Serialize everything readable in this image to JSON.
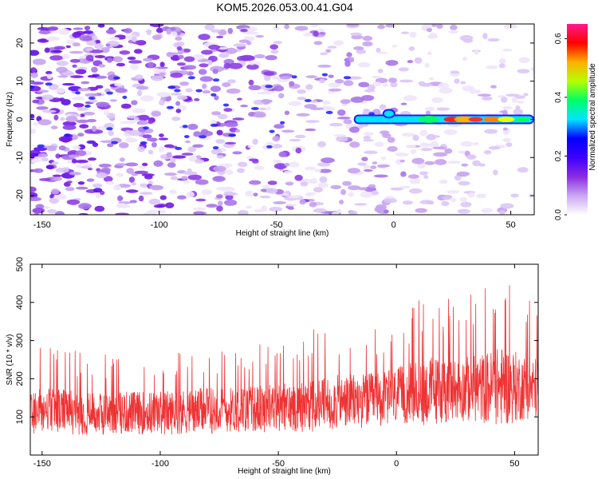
{
  "page_title": "KOM5.2026.053.00.41.G04",
  "chart_data": [
    {
      "type": "heatmap",
      "title": "KOM5.2026.053.00.41.G04",
      "xlabel": "Height of straight line (km)",
      "ylabel": "Frequency (Hz)",
      "xlim": [
        -155,
        60
      ],
      "ylim": [
        -25,
        25
      ],
      "xticks": [
        -150,
        -100,
        -50,
        0,
        50
      ],
      "yticks": [
        -20,
        -10,
        0,
        10,
        20
      ],
      "signal": {
        "description": "strong coherent feature near 0 Hz from about -17 km to 60 km",
        "frequency_hz": 0,
        "x_range_km": [
          -17,
          60
        ],
        "peak_amplitude": 0.6
      },
      "colorbar": {
        "label": "Normalized spectral amplitude",
        "range": [
          0.0,
          0.65
        ],
        "ticks": [
          "0.0",
          "0.2",
          "0.4",
          "0.6"
        ],
        "tick_values": [
          0.0,
          0.2,
          0.4,
          0.6
        ],
        "colors": [
          "#ffffff",
          "#c9a6f2",
          "#8a2be2",
          "#3d00ff",
          "#0000ff",
          "#00e5ff",
          "#00ff66",
          "#b6ff00",
          "#ffb000",
          "#ff0000",
          "#ff1a8c"
        ]
      }
    },
    {
      "type": "line",
      "xlabel": "Height of straight line (km)",
      "ylabel": "SNR (10 * v/v)",
      "xlim": [
        -155,
        60
      ],
      "ylim": [
        0,
        500
      ],
      "xticks": [
        -150,
        -100,
        -50,
        0,
        50
      ],
      "yticks": [
        100,
        200,
        300,
        400,
        500
      ],
      "series": [
        {
          "name": "SNR",
          "color": "#ee3333",
          "x": [
            -155,
            -145,
            -135,
            -125,
            -115,
            -105,
            -95,
            -85,
            -75,
            -65,
            -55,
            -45,
            -35,
            -25,
            -15,
            -5,
            5,
            15,
            25,
            35,
            45,
            55,
            60
          ],
          "baseline": [
            115,
            118,
            110,
            108,
            112,
            110,
            112,
            115,
            118,
            120,
            122,
            125,
            130,
            138,
            142,
            148,
            160,
            168,
            172,
            175,
            180,
            178,
            175
          ],
          "upper_envelope": [
            255,
            250,
            240,
            235,
            240,
            240,
            245,
            250,
            255,
            255,
            265,
            270,
            290,
            300,
            305,
            310,
            340,
            380,
            360,
            380,
            420,
            370,
            360
          ]
        }
      ]
    }
  ]
}
